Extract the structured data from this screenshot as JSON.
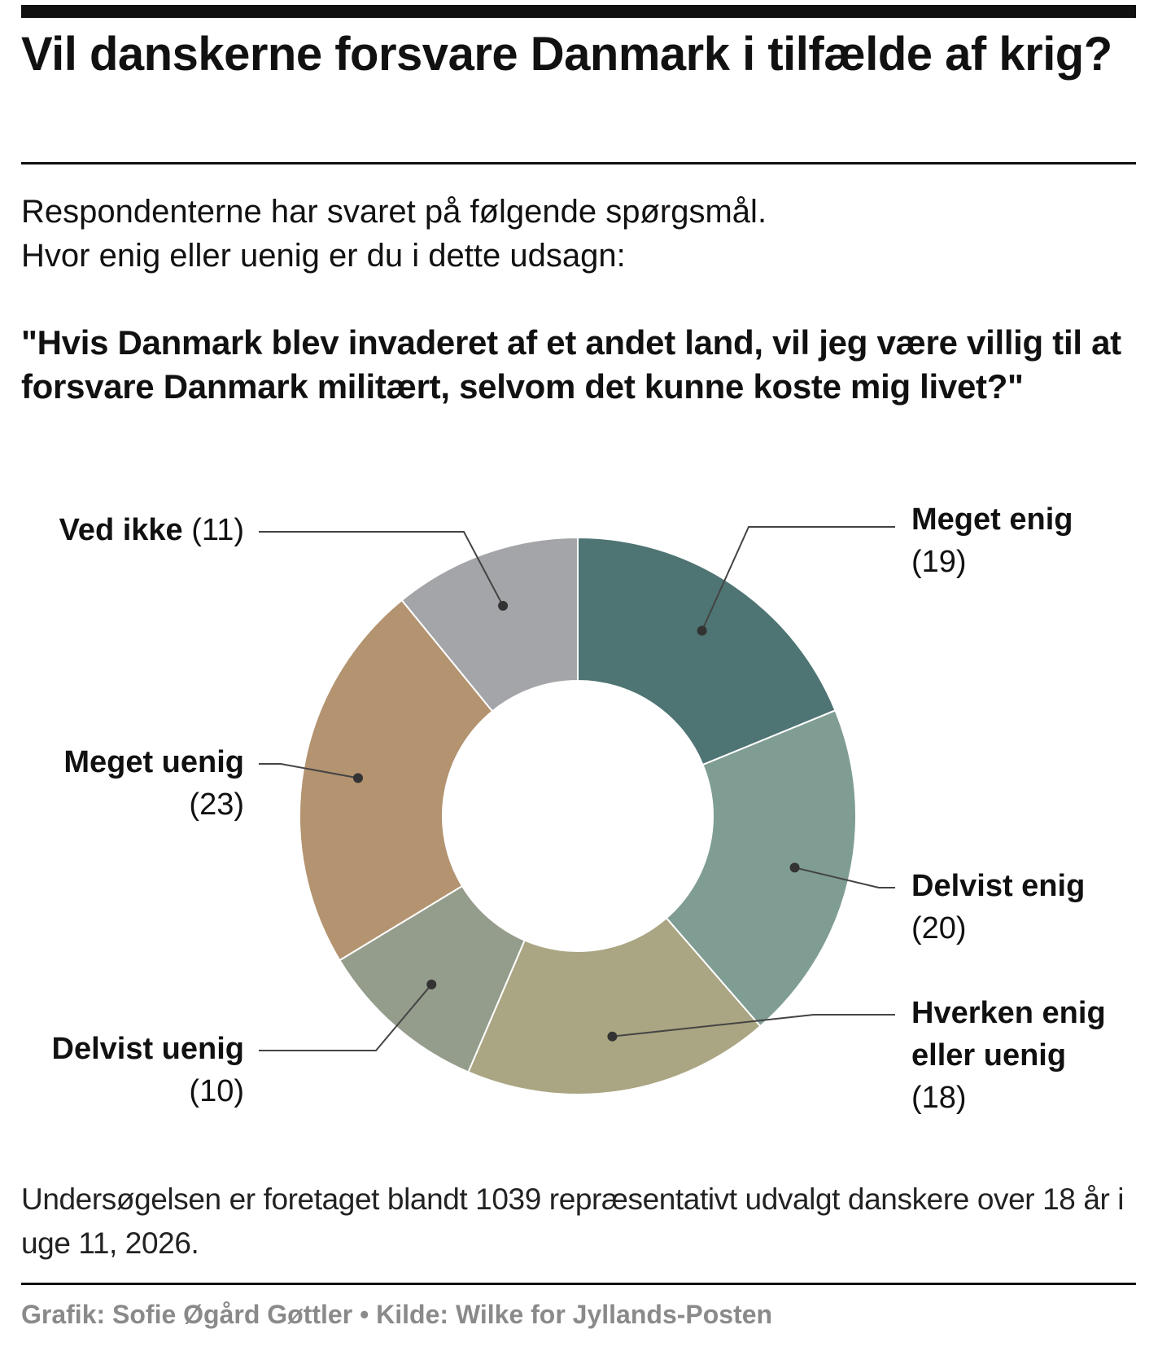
{
  "header": {
    "title": "Vil danskerne forsvare Danmark i tilfælde af krig?",
    "subtitle_line1": "Respondenterne har svaret på følgende spørgsmål.",
    "subtitle_line2": "Hvor enig eller uenig er du i dette udsagn:",
    "question": "\"Hvis Danmark blev invaderet af et andet land, vil jeg være villig til at forsvare Danmark militært, selvom det kunne koste mig livet?\""
  },
  "chart_data": {
    "type": "pie",
    "donut": true,
    "legend": "none",
    "grid": false,
    "slices": [
      {
        "label": "Meget enig",
        "value": 19,
        "display": "(19)",
        "color": "#4e7473"
      },
      {
        "label": "Delvist enig",
        "value": 20,
        "display": "(20)",
        "color": "#809d94"
      },
      {
        "label": "Hverken enig eller uenig",
        "value": 18,
        "display": "(18)",
        "color": "#aaa582"
      },
      {
        "label": "Delvist uenig",
        "value": 10,
        "display": "(10)",
        "color": "#949c8b"
      },
      {
        "label": "Meget uenig",
        "value": 23,
        "display": "(23)",
        "color": "#b39370"
      },
      {
        "label": "Ved ikke",
        "value": 11,
        "display": "(11)",
        "color": "#a4a5a8"
      }
    ]
  },
  "footer": {
    "note": "Undersøgelsen er foretaget blandt 1039 repræsentativt udvalgt danskere over 18 år i uge 11, 2026.",
    "credit": "Grafik: Sofie Øgård Gøttler • Kilde: Wilke for Jyllands-Posten"
  }
}
